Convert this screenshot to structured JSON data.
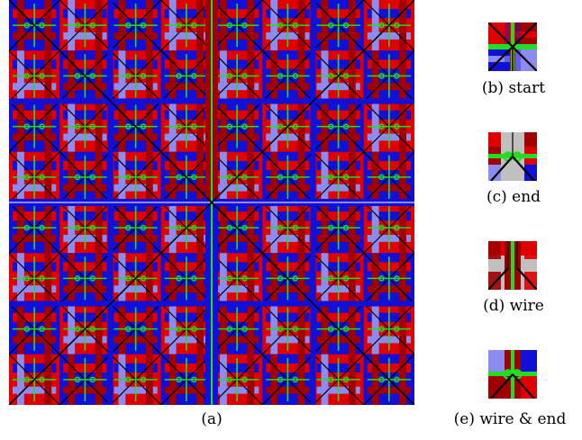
{
  "captions": {
    "a": "(a)",
    "b": "(b) start",
    "c": "(c) end",
    "d": "(d) wire",
    "e": "(e) wire & end"
  },
  "colors": {
    "red": "#e00000",
    "dark_red": "#a00000",
    "blue": "#1010d8",
    "light_blue": "#8c8cf0",
    "gray": "#c0c0c0",
    "green": "#22dd22",
    "line": "#000000"
  }
}
